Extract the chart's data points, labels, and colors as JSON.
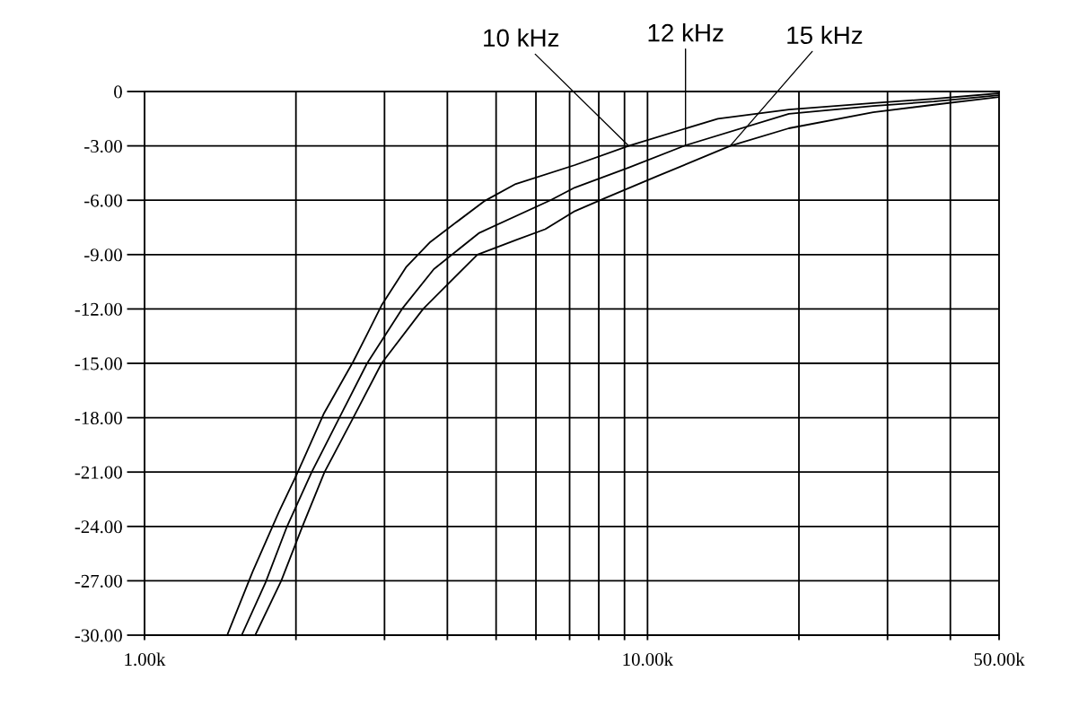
{
  "chart_data": {
    "type": "line",
    "log": "x",
    "grid": true,
    "xlim": [
      1,
      50
    ],
    "ylim": [
      -30,
      0
    ],
    "xticks": [
      {
        "value": 1,
        "label": "1.00k"
      },
      {
        "value": 2,
        "label": null
      },
      {
        "value": 3,
        "label": null
      },
      {
        "value": 4,
        "label": null
      },
      {
        "value": 5,
        "label": null
      },
      {
        "value": 6,
        "label": null
      },
      {
        "value": 7,
        "label": null
      },
      {
        "value": 8,
        "label": null
      },
      {
        "value": 9,
        "label": null
      },
      {
        "value": 10,
        "label": "10.00k"
      },
      {
        "value": 20,
        "label": null
      },
      {
        "value": 30,
        "label": null
      },
      {
        "value": 40,
        "label": null
      },
      {
        "value": 50,
        "label": "50.00k"
      }
    ],
    "yticks": [
      {
        "value": 0,
        "label": "0"
      },
      {
        "value": -3,
        "label": "-3.00"
      },
      {
        "value": -6,
        "label": "-6.00"
      },
      {
        "value": -9,
        "label": "-9.00"
      },
      {
        "value": -12,
        "label": "-12.00"
      },
      {
        "value": -15,
        "label": "-15.00"
      },
      {
        "value": -18,
        "label": "-18.00"
      },
      {
        "value": -21,
        "label": "-21.00"
      },
      {
        "value": -24,
        "label": "-24.00"
      },
      {
        "value": -27,
        "label": "-27.00"
      },
      {
        "value": -30,
        "label": "-30.00"
      }
    ],
    "series": [
      {
        "color": "#000000",
        "x": [
          1.46,
          1.64,
          1.85,
          2.01,
          2.27,
          2.6,
          2.77,
          2.96,
          3.31,
          3.7,
          4.73,
          5.47,
          7.17,
          9.17,
          13.8,
          19.1,
          28.1,
          37.1,
          50
        ],
        "values": [
          -30,
          -26.5,
          -23.2,
          -21.1,
          -17.8,
          -14.9,
          -13.4,
          -11.8,
          -9.7,
          -8.3,
          -6.06,
          -5.1,
          -4.06,
          -3,
          -1.5,
          -1,
          -0.64,
          -0.4,
          -0.1
        ]
      },
      {
        "color": "#000000",
        "x": [
          1.56,
          1.74,
          1.92,
          2.15,
          2.44,
          2.77,
          3.25,
          3.76,
          4.63,
          6.41,
          7.17,
          9.17,
          11.9,
          19.1,
          28.1,
          37.1,
          50
        ],
        "values": [
          -30,
          -27.1,
          -24,
          -21,
          -18,
          -15,
          -12,
          -9.8,
          -7.8,
          -6,
          -5.3,
          -4.2,
          -2.97,
          -1.23,
          -0.8,
          -0.55,
          -0.2
        ]
      },
      {
        "color": "#000000",
        "x": [
          1.66,
          1.87,
          2.06,
          2.28,
          2.6,
          2.96,
          3.58,
          3.76,
          4.59,
          5.47,
          6.26,
          7.17,
          8.21,
          10.4,
          14.6,
          19.1,
          28.1,
          37.1,
          50
        ],
        "values": [
          -30,
          -27,
          -24,
          -21,
          -18,
          -15,
          -12,
          -11.4,
          -9,
          -8.2,
          -7.6,
          -6.6,
          -5.9,
          -4.7,
          -3,
          -2.03,
          -1.14,
          -0.73,
          -0.3
        ]
      }
    ],
    "annotations": [
      {
        "text": "10 kHz",
        "x": 9.17,
        "y": -3
      },
      {
        "text": "12 kHz",
        "x": 11.9,
        "y": -2.97
      },
      {
        "text": "15 kHz",
        "x": 14.6,
        "y": -3
      }
    ]
  }
}
